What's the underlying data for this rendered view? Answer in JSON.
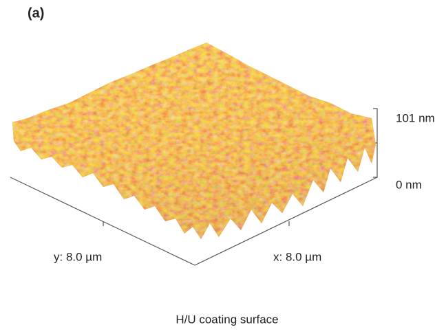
{
  "panel_label": "(a)",
  "z_axis": {
    "top_label": "101 nm",
    "bottom_label": "0 nm"
  },
  "x_axis_label": "x: 8.0 µm",
  "y_axis_label": "y: 8.0 µm",
  "caption": "H/U coating surface"
}
